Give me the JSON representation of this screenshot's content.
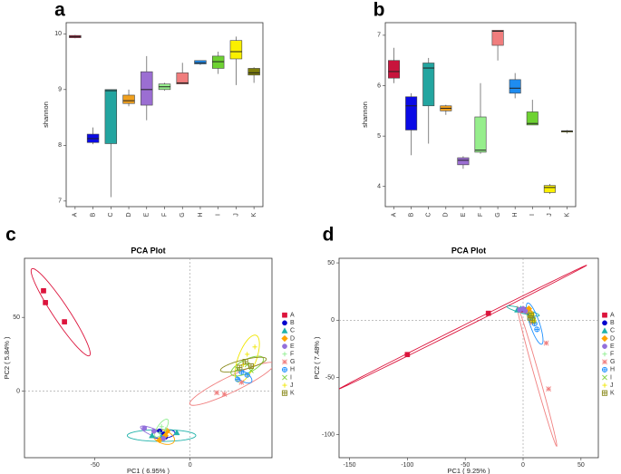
{
  "chart_data": [
    {
      "type": "box",
      "label": "a",
      "ylabel": "shannon",
      "categories": [
        "A",
        "B",
        "C",
        "D",
        "E",
        "F",
        "G",
        "H",
        "I",
        "J",
        "K"
      ],
      "colors": [
        "#c8143c",
        "#0a0ae6",
        "#23a5a0",
        "#f0a01e",
        "#9b6ed2",
        "#96ee8c",
        "#f07d7d",
        "#1e8cf0",
        "#6ed232",
        "#faf000",
        "#7d7d0a"
      ],
      "boxes": [
        {
          "min": 9.92,
          "q1": 9.93,
          "median": 9.95,
          "q3": 9.97,
          "max": 9.98
        },
        {
          "min": 8.02,
          "q1": 8.05,
          "median": 8.12,
          "q3": 8.2,
          "max": 8.32
        },
        {
          "min": 7.07,
          "q1": 8.03,
          "median": 8.98,
          "q3": 9.0,
          "max": 9.0
        },
        {
          "min": 8.7,
          "q1": 8.75,
          "median": 8.8,
          "q3": 8.9,
          "max": 9.0
        },
        {
          "min": 8.45,
          "q1": 8.72,
          "median": 9.0,
          "q3": 9.32,
          "max": 9.6
        },
        {
          "min": 8.98,
          "q1": 9.0,
          "median": 9.05,
          "q3": 9.1,
          "max": 9.12
        },
        {
          "min": 9.1,
          "q1": 9.1,
          "median": 9.12,
          "q3": 9.3,
          "max": 9.48
        },
        {
          "min": 9.44,
          "q1": 9.46,
          "median": 9.48,
          "q3": 9.52,
          "max": 9.52
        },
        {
          "min": 9.28,
          "q1": 9.38,
          "median": 9.5,
          "q3": 9.6,
          "max": 9.68
        },
        {
          "min": 9.08,
          "q1": 9.55,
          "median": 9.68,
          "q3": 9.88,
          "max": 9.95
        },
        {
          "min": 9.12,
          "q1": 9.26,
          "median": 9.3,
          "q3": 9.38,
          "max": 9.4
        }
      ],
      "ylim": [
        6.9,
        10.2
      ],
      "yticks": [
        7,
        8,
        9,
        10
      ]
    },
    {
      "type": "box",
      "label": "b",
      "ylabel": "shannon",
      "categories": [
        "A",
        "B",
        "C",
        "D",
        "E",
        "F",
        "G",
        "H",
        "I",
        "J",
        "K"
      ],
      "colors": [
        "#c8143c",
        "#0a0ae6",
        "#23a5a0",
        "#f0a01e",
        "#9b6ed2",
        "#96ee8c",
        "#f07d7d",
        "#1e8cf0",
        "#6ed232",
        "#faf000",
        "#7d7d0a"
      ],
      "boxes": [
        {
          "min": 6.05,
          "q1": 6.15,
          "median": 6.28,
          "q3": 6.5,
          "max": 6.75
        },
        {
          "min": 4.62,
          "q1": 5.12,
          "median": 5.6,
          "q3": 5.78,
          "max": 5.85
        },
        {
          "min": 4.85,
          "q1": 5.6,
          "median": 6.35,
          "q3": 6.45,
          "max": 6.55
        },
        {
          "min": 5.42,
          "q1": 5.5,
          "median": 5.55,
          "q3": 5.6,
          "max": 5.62
        },
        {
          "min": 4.35,
          "q1": 4.43,
          "median": 4.52,
          "q3": 4.57,
          "max": 4.6
        },
        {
          "min": 4.65,
          "q1": 4.68,
          "median": 4.72,
          "q3": 5.38,
          "max": 6.05
        },
        {
          "min": 6.5,
          "q1": 6.8,
          "median": 7.08,
          "q3": 7.1,
          "max": 7.1
        },
        {
          "min": 5.75,
          "q1": 5.85,
          "median": 5.95,
          "q3": 6.12,
          "max": 6.25
        },
        {
          "min": 5.22,
          "q1": 5.22,
          "median": 5.25,
          "q3": 5.48,
          "max": 5.72
        },
        {
          "min": 3.85,
          "q1": 3.88,
          "median": 3.98,
          "q3": 4.02,
          "max": 4.05
        },
        {
          "min": 5.05,
          "q1": 5.08,
          "median": 5.1,
          "q3": 5.1,
          "max": 5.12
        }
      ],
      "ylim": [
        3.6,
        7.25
      ],
      "yticks": [
        4,
        5,
        6,
        7
      ]
    },
    {
      "type": "scatter",
      "label": "c",
      "title": "PCA Plot",
      "xlabel": "PC1 ( 6.95% )",
      "ylabel": "PC2 ( 5.84% )",
      "xlim": [
        -87,
        43
      ],
      "ylim": [
        -45,
        90
      ],
      "xticks": [
        -50,
        0
      ],
      "yticks": [
        0,
        50
      ],
      "zero_lines": true,
      "series": [
        {
          "name": "A",
          "color": "#dc143c",
          "marker": "square",
          "x": [
            -77,
            -76,
            -66
          ],
          "y": [
            68,
            60,
            47
          ],
          "ellipse": {
            "center": [
              -68,
              53.5
            ],
            "axis1": [
              15,
              -29.5
            ],
            "axis2": [
              4,
              2
            ]
          }
        },
        {
          "name": "B",
          "color": "#0000cd",
          "marker": "circle",
          "x": [
            -14,
            -13,
            -16
          ],
          "y": [
            -29,
            -31,
            -27
          ],
          "ellipse": {
            "center": [
              -14,
              -29
            ],
            "axis1": [
              6,
              0.5
            ],
            "axis2": [
              0.5,
              3
            ]
          }
        },
        {
          "name": "C",
          "color": "#20b2aa",
          "marker": "triangle",
          "x": [
            -20,
            -7,
            -15
          ],
          "y": [
            -30,
            -28,
            -31
          ],
          "ellipse": {
            "center": [
              -15,
              -30
            ],
            "axis1": [
              18,
              0
            ],
            "axis2": [
              0,
              4
            ]
          }
        },
        {
          "name": "D",
          "color": "#ffa500",
          "marker": "diamond",
          "x": [
            -16,
            -12,
            -13
          ],
          "y": [
            -33,
            -27,
            -30
          ],
          "ellipse": {
            "center": [
              -14,
              -31
            ],
            "axis1": [
              5,
              -4
            ],
            "axis2": [
              3,
              3
            ]
          }
        },
        {
          "name": "E",
          "color": "#9370db",
          "marker": "circle",
          "x": [
            -24,
            -19,
            -14
          ],
          "y": [
            -25,
            -27,
            -32
          ],
          "ellipse": {
            "center": [
              -19,
              -28
            ],
            "axis1": [
              7,
              -4
            ],
            "axis2": [
              1,
              2
            ]
          }
        },
        {
          "name": "F",
          "color": "#90ee90",
          "marker": "cross",
          "x": [
            -15,
            -13,
            -16
          ],
          "y": [
            -24,
            -26,
            -28
          ],
          "ellipse": {
            "center": [
              -15,
              -25
            ],
            "axis1": [
              3,
              6
            ],
            "axis2": [
              2,
              -1
            ]
          }
        },
        {
          "name": "G",
          "color": "#f08080",
          "marker": "asterisk",
          "x": [
            18,
            14,
            27
          ],
          "y": [
            -2,
            -1,
            6
          ],
          "ellipse": {
            "center": [
              22,
              5
            ],
            "axis1": [
              22,
              14
            ],
            "axis2": [
              -3,
              4
            ]
          }
        },
        {
          "name": "H",
          "color": "#1e90ff",
          "marker": "circle-plus",
          "x": [
            25,
            27,
            30
          ],
          "y": [
            8,
            13,
            11
          ],
          "ellipse": {
            "center": [
              28,
              10
            ],
            "axis1": [
              4,
              -4
            ],
            "axis2": [
              2,
              2
            ]
          }
        },
        {
          "name": "I",
          "color": "#7cd23c",
          "marker": "x",
          "x": [
            30,
            25,
            32
          ],
          "y": [
            18,
            15,
            14
          ],
          "ellipse": {
            "center": [
              30,
              17
            ],
            "axis1": [
              8,
              6
            ],
            "axis2": [
              -3,
              3
            ]
          }
        },
        {
          "name": "J",
          "color": "#f0e600",
          "marker": "cross",
          "x": [
            34,
            30,
            28
          ],
          "y": [
            30,
            25,
            18
          ],
          "ellipse": {
            "center": [
              30,
              22
            ],
            "axis1": [
              4,
              16
            ],
            "axis2": [
              5,
              0
            ]
          }
        },
        {
          "name": "K",
          "color": "#8b8b1e",
          "marker": "square-plus",
          "x": [
            26,
            29,
            32
          ],
          "y": [
            16,
            20,
            17
          ],
          "ellipse": {
            "center": [
              28,
              18
            ],
            "axis1": [
              12,
              4
            ],
            "axis2": [
              -1,
              3
            ]
          }
        }
      ]
    },
    {
      "type": "scatter",
      "label": "d",
      "title": "PCA Plot",
      "xlabel": "PC1 ( 9.25% )",
      "ylabel": "PC2 ( 7.48% )",
      "xlim": [
        -159,
        65
      ],
      "ylim": [
        -120,
        54
      ],
      "xticks": [
        -150,
        -100,
        -50,
        0,
        50
      ],
      "yticks": [
        -100,
        -50,
        0,
        50
      ],
      "zero_lines": true,
      "series": [
        {
          "name": "A",
          "color": "#dc143c",
          "marker": "square",
          "x": [
            -100,
            -30,
            0
          ],
          "y": [
            -30,
            6,
            9
          ],
          "ellipse": {
            "center": [
              -52,
              -6
            ],
            "axis1": [
              107,
              54
            ],
            "axis2": [
              0.5,
              -1
            ]
          }
        },
        {
          "name": "B",
          "color": "#0000cd",
          "marker": "circle",
          "x": [
            3,
            1,
            5
          ],
          "y": [
            8,
            9,
            7
          ],
          "ellipse": {
            "center": [
              3,
              8
            ],
            "axis1": [
              4,
              -1
            ],
            "axis2": [
              0.5,
              1
            ]
          }
        },
        {
          "name": "C",
          "color": "#20b2aa",
          "marker": "triangle",
          "x": [
            -5,
            -2,
            6
          ],
          "y": [
            9,
            10,
            5
          ],
          "ellipse": {
            "center": [
              0,
              8
            ],
            "axis1": [
              14,
              -4
            ],
            "axis2": [
              0.5,
              2
            ]
          }
        },
        {
          "name": "D",
          "color": "#ffa500",
          "marker": "diamond",
          "x": [
            5,
            7,
            3
          ],
          "y": [
            10,
            6,
            8
          ],
          "ellipse": {
            "center": [
              5,
              8
            ],
            "axis1": [
              3,
              -3
            ],
            "axis2": [
              1,
              1
            ]
          }
        },
        {
          "name": "E",
          "color": "#9370db",
          "marker": "circle",
          "x": [
            -3,
            0,
            2
          ],
          "y": [
            9,
            10,
            8
          ],
          "ellipse": {
            "center": [
              0,
              9
            ],
            "axis1": [
              4,
              -1
            ],
            "axis2": [
              0.5,
              1
            ]
          }
        },
        {
          "name": "F",
          "color": "#90ee90",
          "marker": "cross",
          "x": [
            5,
            8,
            6
          ],
          "y": [
            4,
            1,
            6
          ],
          "ellipse": {
            "center": [
              6,
              4
            ],
            "axis1": [
              3,
              -4
            ],
            "axis2": [
              1,
              1
            ]
          }
        },
        {
          "name": "G",
          "color": "#f08080",
          "marker": "asterisk",
          "x": [
            8,
            20,
            22
          ],
          "y": [
            -2,
            -20,
            -60
          ],
          "ellipse": {
            "center": [
              12,
              -49
            ],
            "axis1": [
              17,
              -61
            ],
            "axis2": [
              2,
              0.5
            ]
          }
        },
        {
          "name": "H",
          "color": "#1e90ff",
          "marker": "circle-plus",
          "x": [
            10,
            12,
            8
          ],
          "y": [
            -3,
            -8,
            2
          ],
          "ellipse": {
            "center": [
              10,
              -3
            ],
            "axis1": [
              6,
              -18
            ],
            "axis2": [
              4,
              1
            ]
          }
        },
        {
          "name": "I",
          "color": "#7cd23c",
          "marker": "x",
          "x": [
            7,
            9,
            6
          ],
          "y": [
            2,
            0,
            5
          ],
          "ellipse": {
            "center": [
              7,
              2
            ],
            "axis1": [
              3,
              -4
            ],
            "axis2": [
              1,
              1
            ]
          }
        },
        {
          "name": "J",
          "color": "#f0e600",
          "marker": "cross",
          "x": [
            6,
            8,
            9
          ],
          "y": [
            3,
            5,
            -1
          ],
          "ellipse": {
            "center": [
              8,
              2
            ],
            "axis1": [
              2,
              -5
            ],
            "axis2": [
              2,
              1
            ]
          }
        },
        {
          "name": "K",
          "color": "#8b8b1e",
          "marker": "square-plus",
          "x": [
            6,
            7,
            8
          ],
          "y": [
            2,
            4,
            0
          ],
          "ellipse": {
            "center": [
              7,
              2
            ],
            "axis1": [
              2,
              -3
            ],
            "axis2": [
              1,
              1
            ]
          }
        }
      ]
    }
  ]
}
